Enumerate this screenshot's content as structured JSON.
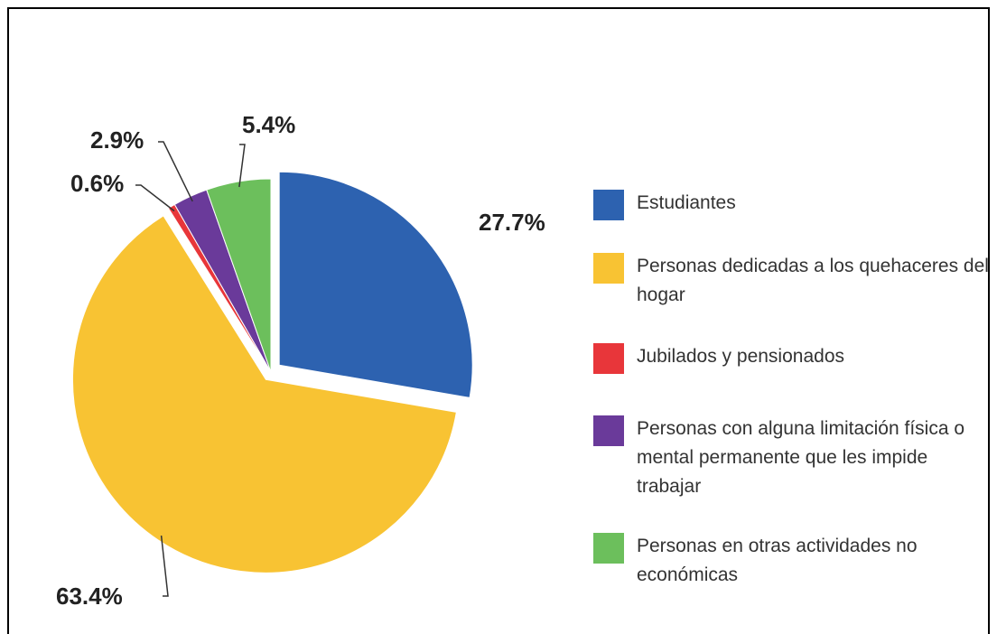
{
  "chart_data": {
    "type": "pie",
    "categories": [
      "Estudiantes",
      "Personas dedicadas a los quehaceres del hogar",
      "Jubilados y pensionados",
      "Personas con alguna limitación física o mental permanente que les impide trabajar",
      "Personas en otras actividades no económicas"
    ],
    "values": [
      27.7,
      63.4,
      0.6,
      2.9,
      5.4
    ],
    "value_labels": [
      "27.7%",
      "63.4%",
      "0.6%",
      "2.9%",
      "5.4%"
    ],
    "colors": [
      "#2d62b0",
      "#f8c333",
      "#e8363a",
      "#6a3a9a",
      "#6cbf5c"
    ],
    "legend": "right"
  }
}
